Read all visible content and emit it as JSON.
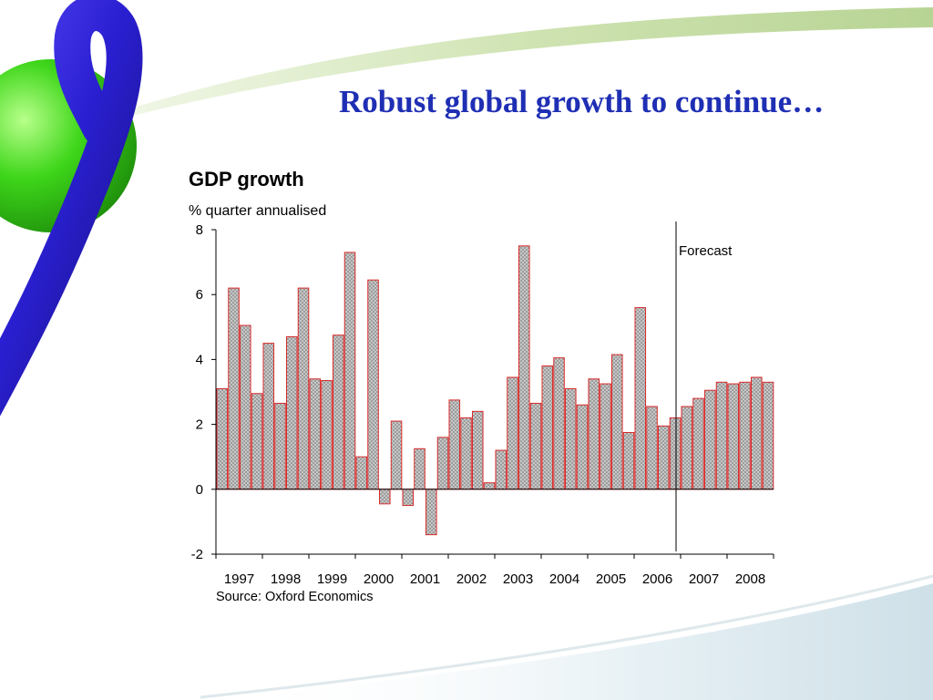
{
  "slide": {
    "title": "Robust global growth to continue…"
  },
  "colors": {
    "title": "#1f2fb4",
    "bar_fill": "#c9c9c9",
    "bar_stroke": "#d82a2a",
    "decor_sphere": "#3ed61a",
    "decor_ring": "#2a1fd0",
    "decor_swoosh": "#cfe3b2"
  },
  "chart_data": {
    "type": "bar",
    "title": "GDP growth",
    "subtitle": "% quarter annualised",
    "source": "Source: Oxford Economics",
    "annotation": "Forecast",
    "forecast_start_index": 40,
    "ylim": [
      -2,
      8
    ],
    "yticks": [
      -2,
      0,
      2,
      4,
      6,
      8
    ],
    "grid": false,
    "year_labels": [
      "1997",
      "1998",
      "1999",
      "2000",
      "2001",
      "2002",
      "2003",
      "2004",
      "2005",
      "2006",
      "2007",
      "2008"
    ],
    "bars_per_year": 4,
    "values": [
      3.1,
      6.2,
      5.05,
      2.95,
      4.5,
      2.65,
      4.7,
      6.2,
      3.4,
      3.35,
      4.75,
      7.3,
      1.0,
      6.45,
      -0.45,
      2.1,
      -0.5,
      1.25,
      -1.4,
      1.6,
      2.75,
      2.2,
      2.4,
      0.2,
      1.2,
      3.45,
      7.5,
      2.65,
      3.8,
      4.05,
      3.1,
      2.6,
      3.4,
      3.25,
      4.15,
      1.75,
      5.6,
      2.55,
      1.95,
      2.2,
      2.55,
      2.8,
      3.05,
      3.3,
      3.25,
      3.3,
      3.45,
      3.3
    ]
  }
}
